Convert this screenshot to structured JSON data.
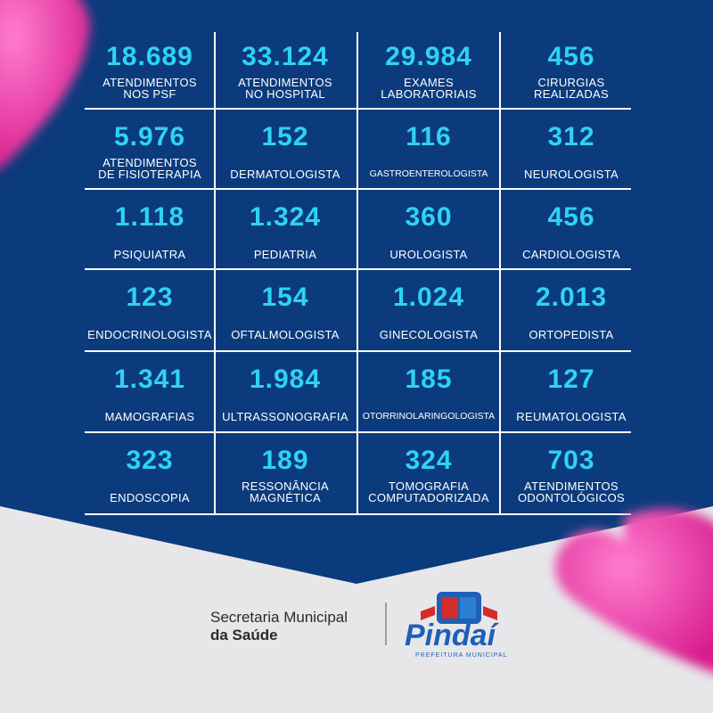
{
  "cells": [
    {
      "value": "18.689",
      "label": [
        "ATENDIMENTOS",
        "NOS PSF"
      ]
    },
    {
      "value": "33.124",
      "label": [
        "ATENDIMENTOS",
        "NO HOSPITAL"
      ]
    },
    {
      "value": "29.984",
      "label": [
        "EXAMES",
        "LABORATORIAIS"
      ]
    },
    {
      "value": "456",
      "label": [
        "CIRURGIAS",
        "REALIZADAS"
      ]
    },
    {
      "value": "5.976",
      "label": [
        "ATENDIMENTOS",
        "DE FISIOTERAPIA"
      ]
    },
    {
      "value": "152",
      "label": [
        "DERMATOLOGISTA"
      ]
    },
    {
      "value": "116",
      "label": [
        "GASTROENTEROLOGISTA"
      ]
    },
    {
      "value": "312",
      "label": [
        "NEUROLOGISTA"
      ]
    },
    {
      "value": "1.118",
      "label": [
        "PSIQUIATRA"
      ]
    },
    {
      "value": "1.324",
      "label": [
        "PEDIATRIA"
      ]
    },
    {
      "value": "360",
      "label": [
        "UROLOGISTA"
      ]
    },
    {
      "value": "456",
      "label": [
        "CARDIOLOGISTA"
      ]
    },
    {
      "value": "123",
      "label": [
        "ENDOCRINOLOGISTA"
      ]
    },
    {
      "value": "154",
      "label": [
        "OFTALMOLOGISTA"
      ]
    },
    {
      "value": "1.024",
      "label": [
        "GINECOLOGISTA"
      ]
    },
    {
      "value": "2.013",
      "label": [
        "ORTOPEDISTA"
      ]
    },
    {
      "value": "1.341",
      "label": [
        "MAMOGRAFIAS"
      ]
    },
    {
      "value": "1.984",
      "label": [
        "ULTRASSONOGRAFIA"
      ]
    },
    {
      "value": "185",
      "label": [
        "OTORRINOLARINGOLOGISTA"
      ]
    },
    {
      "value": "127",
      "label": [
        "REUMATOLOGISTA"
      ]
    },
    {
      "value": "323",
      "label": [
        "ENDOSCOPIA"
      ]
    },
    {
      "value": "189",
      "label": [
        "RESSONÂNCIA",
        "MAGNÉTICA"
      ]
    },
    {
      "value": "324",
      "label": [
        "TOMOGRAFIA",
        "COMPUTADORIZADA"
      ]
    },
    {
      "value": "703",
      "label": [
        "ATENDIMENTOS",
        "ODONTOLÓGICOS"
      ]
    }
  ],
  "footer": {
    "secretaria": [
      "Secretaria Municipal",
      "da Saúde"
    ],
    "city": "Pindaí",
    "city_subtitle": "PREFEITURA MUNICIPAL"
  }
}
